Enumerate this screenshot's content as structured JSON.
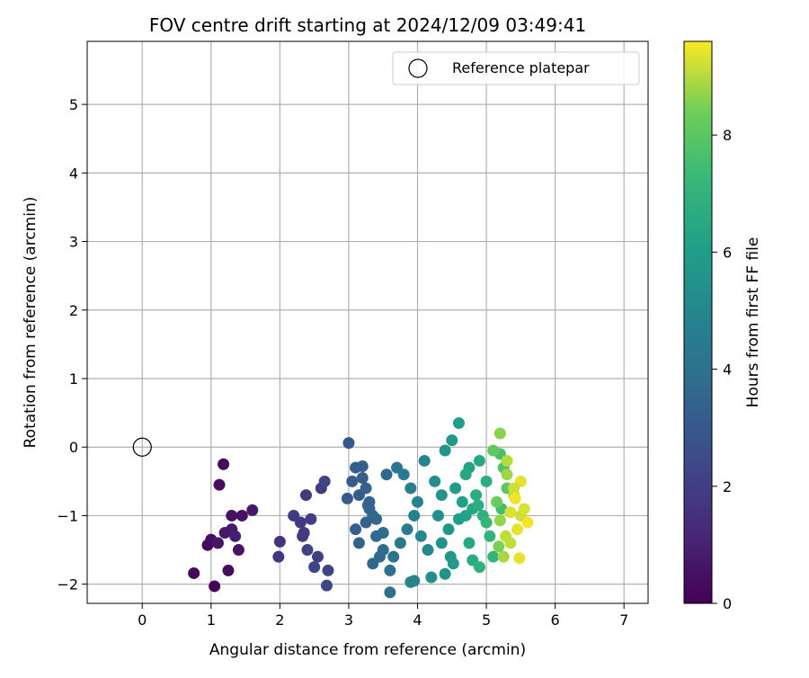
{
  "chart_data": {
    "type": "scatter",
    "title": "FOV centre drift starting at 2024/12/09 03:49:41",
    "xlabel": "Angular distance from reference (arcmin)",
    "ylabel": "Rotation from reference (arcmin)",
    "xlim": [
      -0.8,
      7.35
    ],
    "ylim": [
      -2.28,
      5.92
    ],
    "xticks": [
      0,
      1,
      2,
      3,
      4,
      5,
      6,
      7
    ],
    "yticks": [
      -2,
      -1,
      0,
      1,
      2,
      3,
      4,
      5
    ],
    "grid": true,
    "legend": {
      "placement": "top-right",
      "entries": [
        "Reference platepar"
      ]
    },
    "reference_point": {
      "name": "Reference platepar",
      "x": 0,
      "y": 0
    },
    "colorbar": {
      "label": "Hours from first FF file",
      "colormap": "viridis",
      "range": [
        0,
        9.6
      ],
      "ticks": [
        0,
        2,
        4,
        6,
        8
      ]
    },
    "series": [
      {
        "name": "",
        "x": [
          1.18,
          1.12,
          1.3,
          0.95,
          1.05,
          1.25,
          0.75,
          1.0,
          1.4,
          1.6,
          1.3,
          1.35,
          1.1,
          1.45,
          1.2,
          2.0,
          1.98,
          2.2,
          2.3,
          2.35,
          2.4,
          2.5,
          2.55,
          2.6,
          2.65,
          2.7,
          2.68,
          2.45,
          2.38,
          2.33,
          3.0,
          2.98,
          3.05,
          3.1,
          3.2,
          3.25,
          3.3,
          3.35,
          3.1,
          3.15,
          3.4,
          3.5,
          3.6,
          3.55,
          3.3,
          3.25,
          3.45,
          3.35,
          3.2,
          3.15,
          3.28,
          3.4,
          3.5,
          3.6,
          3.7,
          3.8,
          3.9,
          4.0,
          4.1,
          3.95,
          3.85,
          3.75,
          3.65,
          3.9,
          3.95,
          4.2,
          4.3,
          4.35,
          4.25,
          4.15,
          4.05,
          4.4,
          4.5,
          4.6,
          4.55,
          4.65,
          4.7,
          4.45,
          4.35,
          4.4,
          4.48,
          4.52,
          4.75,
          4.6,
          4.8,
          4.9,
          5.0,
          4.85,
          4.95,
          5.05,
          4.75,
          5.1,
          4.8,
          4.9,
          4.7,
          5.0,
          4.88,
          5.2,
          5.25,
          5.3,
          5.22,
          5.1,
          5.2,
          5.3,
          5.4,
          5.5,
          5.45,
          5.35,
          5.25,
          5.15,
          5.55,
          5.6,
          5.5,
          5.4,
          5.3,
          5.2,
          5.28,
          5.35,
          5.42,
          5.18,
          5.48
        ],
        "y": [
          -0.25,
          -0.55,
          -1.0,
          -1.43,
          -2.03,
          -1.8,
          -1.84,
          -1.35,
          -1.5,
          -0.92,
          -1.2,
          -1.3,
          -1.4,
          -1.0,
          -1.25,
          -1.38,
          -1.6,
          -1.0,
          -1.1,
          -1.25,
          -1.5,
          -1.75,
          -1.6,
          -0.6,
          -0.5,
          -1.8,
          -2.02,
          -1.05,
          -0.7,
          -1.3,
          0.06,
          -0.75,
          -0.5,
          -0.3,
          -0.28,
          -0.6,
          -0.8,
          -1.0,
          -1.2,
          -1.4,
          -1.3,
          -1.5,
          -1.8,
          -0.4,
          -0.9,
          -1.1,
          -1.6,
          -1.7,
          -0.45,
          -0.7,
          -0.85,
          -1.05,
          -1.25,
          -2.12,
          -0.3,
          -0.4,
          -0.6,
          -0.8,
          -0.2,
          -1.0,
          -1.2,
          -1.4,
          -1.6,
          -1.97,
          -1.95,
          -1.9,
          -1.0,
          -0.7,
          -0.5,
          -1.5,
          -1.3,
          -0.05,
          0.1,
          0.35,
          -0.6,
          -0.8,
          -1.0,
          -1.2,
          -1.4,
          -1.85,
          -1.6,
          -1.7,
          -0.3,
          -1.05,
          -0.9,
          -0.2,
          -0.5,
          -0.7,
          -1.0,
          -1.3,
          -1.4,
          -1.6,
          -1.65,
          -1.75,
          -0.4,
          -1.1,
          -0.85,
          -0.1,
          -0.3,
          -0.6,
          -0.9,
          -0.05,
          0.2,
          -0.4,
          -0.7,
          -1.0,
          -1.2,
          -1.4,
          -1.6,
          -0.8,
          -0.9,
          -1.1,
          -0.5,
          -0.6,
          -0.2,
          -1.07,
          -1.3,
          -0.95,
          -0.75,
          -1.45,
          -1.62
        ],
        "hours": [
          0.3,
          0.4,
          0.5,
          0.2,
          0.1,
          0.3,
          0.2,
          0.4,
          0.6,
          0.7,
          0.8,
          0.9,
          0.6,
          0.5,
          0.7,
          1.6,
          1.7,
          1.8,
          1.9,
          2.0,
          2.1,
          2.2,
          2.0,
          1.9,
          2.1,
          2.2,
          2.3,
          2.0,
          1.8,
          1.9,
          2.9,
          3.0,
          3.1,
          3.2,
          3.3,
          3.4,
          3.5,
          3.6,
          3.3,
          3.4,
          3.7,
          3.8,
          3.9,
          3.6,
          3.5,
          3.4,
          3.7,
          3.6,
          3.2,
          3.1,
          3.5,
          3.6,
          3.8,
          4.0,
          4.2,
          4.4,
          4.6,
          4.8,
          5.0,
          4.7,
          4.5,
          4.3,
          4.1,
          4.9,
          4.9,
          5.3,
          5.4,
          5.5,
          5.3,
          5.1,
          5.0,
          5.6,
          5.8,
          6.0,
          5.9,
          6.1,
          6.2,
          5.7,
          5.5,
          5.6,
          5.7,
          5.8,
          6.3,
          6.0,
          6.4,
          6.5,
          6.7,
          6.6,
          6.8,
          7.0,
          6.4,
          7.1,
          6.6,
          6.9,
          6.5,
          7.2,
          6.7,
          7.6,
          7.8,
          8.0,
          7.5,
          8.1,
          8.6,
          8.8,
          9.0,
          9.2,
          9.4,
          9.1,
          8.9,
          8.3,
          9.3,
          9.5,
          9.4,
          9.2,
          9.0,
          8.7,
          9.1,
          9.3,
          9.5,
          8.5,
          9.4
        ]
      }
    ]
  }
}
